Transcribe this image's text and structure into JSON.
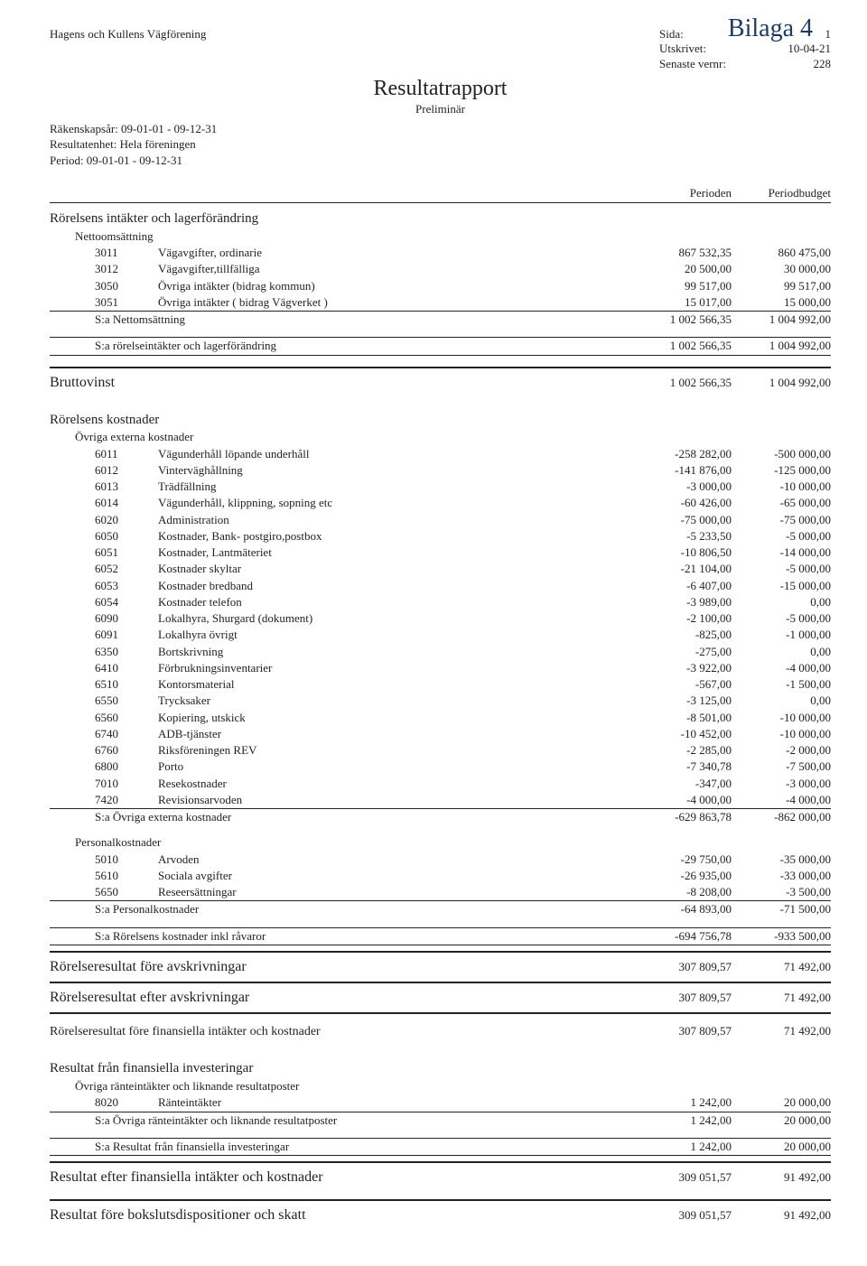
{
  "handwriting": "Bilaga 4",
  "org": "Hagens och Kullens Vägförening",
  "title": "Resultatrapport",
  "subtitle": "Preliminär",
  "meta_right": [
    {
      "k": "Sida:",
      "v": "1"
    },
    {
      "k": "Utskrivet:",
      "v": "10-04-21"
    },
    {
      "k": "Senaste vernr:",
      "v": "228"
    }
  ],
  "meta_left": [
    "Räkenskapsår: 09-01-01 - 09-12-31",
    "Resultatenhet: Hela föreningen",
    "Period: 09-01-01 - 09-12-31"
  ],
  "col1": "Perioden",
  "col2": "Periodbudget",
  "intakter": {
    "head": "Rörelsens intäkter och lagerförändring",
    "sub": "Nettoomsättning",
    "rows": [
      {
        "code": "3011",
        "desc": "Vägavgifter, ordinarie",
        "a": "867 532,35",
        "b": "860 475,00"
      },
      {
        "code": "3012",
        "desc": "Vägavgifter,tillfälliga",
        "a": "20 500,00",
        "b": "30 000,00"
      },
      {
        "code": "3050",
        "desc": "Övriga intäkter (bidrag kommun)",
        "a": "99 517,00",
        "b": "99 517,00"
      },
      {
        "code": "3051",
        "desc": "Övriga intäkter ( bidrag Vägverket )",
        "a": "15 017,00",
        "b": "15 000,00"
      }
    ],
    "sum1": {
      "t": "S:a Nettomsättning",
      "a": "1 002 566,35",
      "b": "1 004 992,00"
    },
    "sum2": {
      "t": "S:a rörelseintäkter och lagerförändring",
      "a": "1 002 566,35",
      "b": "1 004 992,00"
    }
  },
  "brutto": {
    "t": "Bruttovinst",
    "a": "1 002 566,35",
    "b": "1 004 992,00"
  },
  "kostnader": {
    "head": "Rörelsens kostnader",
    "sub": "Övriga externa kostnader",
    "rows": [
      {
        "code": "6011",
        "desc": "Vägunderhåll  löpande underhåll",
        "a": "-258 282,00",
        "b": "-500 000,00"
      },
      {
        "code": "6012",
        "desc": "Vinterväghållning",
        "a": "-141 876,00",
        "b": "-125 000,00"
      },
      {
        "code": "6013",
        "desc": "Trädfällning",
        "a": "-3 000,00",
        "b": "-10 000,00"
      },
      {
        "code": "6014",
        "desc": "Vägunderhåll, klippning, sopning etc",
        "a": "-60 426,00",
        "b": "-65 000,00"
      },
      {
        "code": "6020",
        "desc": "Administration",
        "a": "-75 000,00",
        "b": "-75 000,00"
      },
      {
        "code": "6050",
        "desc": "Kostnader, Bank- postgiro,postbox",
        "a": "-5 233,50",
        "b": "-5 000,00"
      },
      {
        "code": "6051",
        "desc": "Kostnader, Lantmäteriet",
        "a": "-10 806,50",
        "b": "-14 000,00"
      },
      {
        "code": "6052",
        "desc": "Kostnader skyltar",
        "a": "-21 104,00",
        "b": "-5 000,00"
      },
      {
        "code": "6053",
        "desc": "Kostnader bredband",
        "a": "-6 407,00",
        "b": "-15 000,00"
      },
      {
        "code": "6054",
        "desc": "Kostnader telefon",
        "a": "-3 989,00",
        "b": "0,00"
      },
      {
        "code": "6090",
        "desc": "Lokalhyra, Shurgard (dokument)",
        "a": "-2 100,00",
        "b": "-5 000,00"
      },
      {
        "code": "6091",
        "desc": "Lokalhyra övrigt",
        "a": "-825,00",
        "b": "-1 000,00"
      },
      {
        "code": "6350",
        "desc": "Bortskrivning",
        "a": "-275,00",
        "b": "0,00"
      },
      {
        "code": "6410",
        "desc": "Förbrukningsinventarier",
        "a": "-3 922,00",
        "b": "-4 000,00"
      },
      {
        "code": "6510",
        "desc": "Kontorsmaterial",
        "a": "-567,00",
        "b": "-1 500,00"
      },
      {
        "code": "6550",
        "desc": "Trycksaker",
        "a": "-3 125,00",
        "b": "0,00"
      },
      {
        "code": "6560",
        "desc": "Kopiering, utskick",
        "a": "-8 501,00",
        "b": "-10 000,00"
      },
      {
        "code": "6740",
        "desc": "ADB-tjänster",
        "a": "-10 452,00",
        "b": "-10 000,00"
      },
      {
        "code": "6760",
        "desc": "Riksföreningen REV",
        "a": "-2 285,00",
        "b": "-2 000,00"
      },
      {
        "code": "6800",
        "desc": "Porto",
        "a": "-7 340,78",
        "b": "-7 500,00"
      },
      {
        "code": "7010",
        "desc": "Resekostnader",
        "a": "-347,00",
        "b": "-3 000,00"
      },
      {
        "code": "7420",
        "desc": "Revisionsarvoden",
        "a": "-4 000,00",
        "b": "-4 000,00"
      }
    ],
    "sum1": {
      "t": "S:a Övriga externa kostnader",
      "a": "-629 863,78",
      "b": "-862 000,00"
    },
    "pers_sub": "Personalkostnader",
    "pers_rows": [
      {
        "code": "5010",
        "desc": "Arvoden",
        "a": "-29 750,00",
        "b": "-35 000,00"
      },
      {
        "code": "5610",
        "desc": "Sociala avgifter",
        "a": "-26 935,00",
        "b": "-33 000,00"
      },
      {
        "code": "5650",
        "desc": "Reseersättningar",
        "a": "-8 208,00",
        "b": "-3 500,00"
      }
    ],
    "pers_sum": {
      "t": "S:a Personalkostnader",
      "a": "-64 893,00",
      "b": "-71 500,00"
    },
    "tot": {
      "t": "S:a Rörelsens kostnader inkl råvaror",
      "a": "-694 756,78",
      "b": "-933 500,00"
    }
  },
  "res1": {
    "t": "Rörelseresultat före avskrivningar",
    "a": "307 809,57",
    "b": "71 492,00"
  },
  "res2": {
    "t": "Rörelseresultat efter avskrivningar",
    "a": "307 809,57",
    "b": "71 492,00"
  },
  "res3": {
    "t": "Rörelseresultat före finansiella intäkter och kostnader",
    "a": "307 809,57",
    "b": "71 492,00"
  },
  "fin": {
    "head": "Resultat från finansiella investeringar",
    "sub": "Övriga ränteintäkter och liknande resultatposter",
    "rows": [
      {
        "code": "8020",
        "desc": "Ränteintäkter",
        "a": "1 242,00",
        "b": "20 000,00"
      }
    ],
    "sum1": {
      "t": "S:a Övriga ränteintäkter och liknande resultatposter",
      "a": "1 242,00",
      "b": "20 000,00"
    },
    "sum2": {
      "t": "S:a Resultat från finansiella investeringar",
      "a": "1 242,00",
      "b": "20 000,00"
    }
  },
  "res4": {
    "t": "Resultat efter finansiella intäkter och kostnader",
    "a": "309 051,57",
    "b": "91 492,00"
  },
  "res5": {
    "t": "Resultat före bokslutsdispositioner och skatt",
    "a": "309 051,57",
    "b": "91 492,00"
  }
}
